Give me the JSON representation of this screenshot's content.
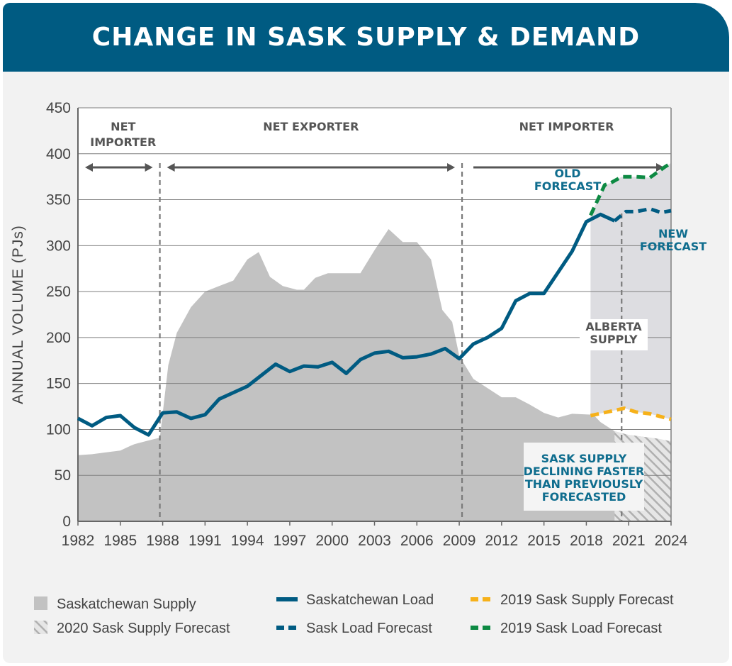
{
  "title": "CHANGE IN SASK SUPPLY & DEMAND",
  "colors": {
    "supply": "#c2c2c2",
    "load": "#005b82",
    "sask_supply_forecast_2019": "#f6b11a",
    "sask_load_forecast_2019": "#0d8a43",
    "alberta_supply": "#dddde1",
    "annotation_teal": "#0f6d8e",
    "annotation_gray": "#555555"
  },
  "chart_data": {
    "type": "area",
    "title": "CHANGE IN SASK SUPPLY & DEMAND",
    "ylabel": "ANNUAL VOLUME (PJs)",
    "xlabel": "",
    "xlim": [
      1982,
      2024
    ],
    "ylim": [
      0,
      450
    ],
    "grid": true,
    "x_ticks": [
      "1982",
      "1985",
      "1988",
      "1991",
      "1994",
      "1997",
      "2000",
      "2003",
      "2006",
      "2009",
      "2012",
      "2015",
      "2018",
      "2021",
      "2024"
    ],
    "y_ticks": [
      "0",
      "50",
      "100",
      "150",
      "200",
      "250",
      "300",
      "350",
      "400",
      "450"
    ],
    "series": [
      {
        "name": "Saskatchewan Supply",
        "style": "area",
        "x": [
          1982,
          1983,
          1984,
          1985,
          1985.7,
          1986,
          1987,
          1987.8,
          1988.4,
          1989,
          1990,
          1991,
          1992,
          1993,
          1994,
          1994.8,
          1995.6,
          1996.5,
          1997.5,
          1998,
          1998.8,
          1999.7,
          2000.5,
          2001,
          2002,
          2003,
          2004,
          2005,
          2006,
          2007,
          2007.8,
          2008.5,
          2009,
          2010,
          2011,
          2012,
          2013,
          2014,
          2015,
          2016,
          2017,
          2018.5,
          2019,
          2020,
          2021,
          2022,
          2023,
          2024
        ],
        "y": [
          72,
          73,
          75,
          77,
          82,
          84,
          88,
          91,
          170,
          205,
          233,
          250,
          256,
          262,
          285,
          293,
          266,
          256,
          252,
          252,
          265,
          270,
          270,
          270,
          270,
          295,
          318,
          304,
          304,
          285,
          230,
          217,
          180,
          155,
          145,
          135,
          135,
          127,
          118,
          113,
          117,
          116,
          108,
          98,
          94,
          92,
          90,
          87
        ]
      },
      {
        "name": "2020 Sask Supply Forecast",
        "style": "hatched-area",
        "x": [
          2020,
          2021,
          2022,
          2023,
          2024
        ],
        "y": [
          98,
          94,
          92,
          90,
          87
        ]
      },
      {
        "name": "Saskatchewan Load",
        "style": "solid-line",
        "x": [
          1982,
          1983,
          1984,
          1985,
          1986,
          1987,
          1988,
          1989,
          1990,
          1991,
          1992,
          1993,
          1994,
          1995,
          1996,
          1997,
          1998,
          1999,
          2000,
          2001,
          2002,
          2003,
          2004,
          2005,
          2006,
          2007,
          2008,
          2009,
          2010,
          2011,
          2012,
          2013,
          2014,
          2015,
          2016,
          2017,
          2018,
          2019,
          2020
        ],
        "y": [
          112,
          104,
          113,
          115,
          102,
          94,
          118,
          119,
          112,
          116,
          133,
          140,
          147,
          159,
          171,
          163,
          169,
          168,
          173,
          161,
          176,
          183,
          185,
          178,
          179,
          182,
          188,
          177,
          193,
          200,
          210,
          240,
          248,
          248,
          271,
          294,
          326,
          334,
          327
        ]
      },
      {
        "name": "Sask Load Forecast",
        "style": "dashed-line",
        "x": [
          2020,
          2020.8,
          2021.5,
          2022.5,
          2023.3,
          2024
        ],
        "y": [
          327,
          337,
          337,
          340,
          336,
          338
        ]
      },
      {
        "name": "2019 Sask Supply Forecast",
        "style": "dashed-line",
        "x": [
          2018.3,
          2019.5,
          2020.7,
          2021.5,
          2022.5,
          2023.5,
          2024
        ],
        "y": [
          115,
          119,
          123,
          119,
          117,
          113,
          111
        ]
      },
      {
        "name": "2019 Sask Load Forecast",
        "style": "dashed-line",
        "x": [
          2018.3,
          2019.3,
          2019.7,
          2020.5,
          2021.5,
          2022.5,
          2023.5,
          2024
        ],
        "y": [
          333,
          366,
          368,
          375,
          375,
          374,
          385,
          390
        ]
      }
    ],
    "regions": [
      {
        "label": "NET IMPORTER",
        "lines": [
          "NET",
          "IMPORTER"
        ],
        "from": 1982,
        "to": 1987.8
      },
      {
        "label": "NET EXPORTER",
        "lines": [
          "NET EXPORTER"
        ],
        "from": 1987.8,
        "to": 2009.2
      },
      {
        "label": "NET IMPORTER",
        "lines": [
          "NET IMPORTER"
        ],
        "from": 2009.2,
        "to": 2024
      }
    ],
    "dividers": [
      1987.8,
      2009.2,
      2020.5
    ],
    "annotations": [
      {
        "id": "old-forecast",
        "lines": [
          "OLD",
          "FORECAST"
        ]
      },
      {
        "id": "new-forecast",
        "lines": [
          "NEW",
          "FORECAST"
        ]
      },
      {
        "id": "alberta-supply",
        "lines": [
          "ALBERTA",
          "SUPPLY"
        ]
      },
      {
        "id": "sask-supply-note",
        "lines": [
          "SASK SUPPLY",
          "DECLINING FASTER",
          "THAN PREVIOUSLY",
          "FORECASTED"
        ]
      }
    ],
    "legend": {
      "placement": "bottom",
      "items": [
        {
          "label": "Saskatchewan Supply",
          "swatch": "gray-box"
        },
        {
          "label": "2020 Sask Supply Forecast",
          "swatch": "hatched-box"
        },
        {
          "label": "Saskatchewan Load",
          "swatch": "solid-line-blue"
        },
        {
          "label": "Sask Load Forecast",
          "swatch": "dashed-line-blue"
        },
        {
          "label": "2019 Sask Supply Forecast",
          "swatch": "dashed-line-yellow"
        },
        {
          "label": "2019 Sask Load Forecast",
          "swatch": "dashed-line-green"
        }
      ]
    }
  }
}
